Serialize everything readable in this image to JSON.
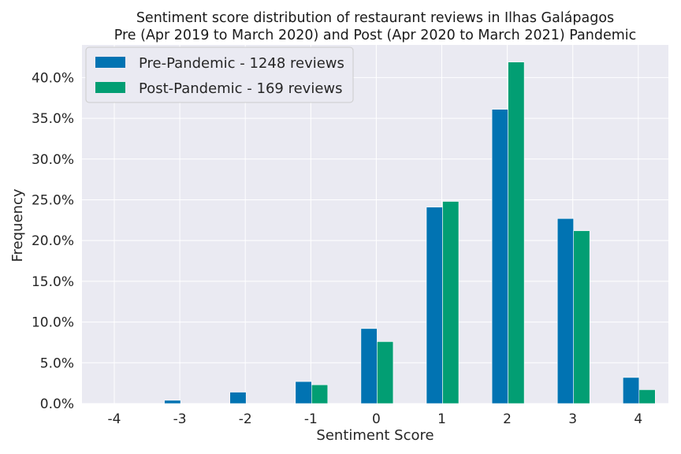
{
  "chart_data": {
    "type": "bar",
    "title_line1": "Sentiment score distribution of restaurant reviews in Ilhas Galápagos",
    "title_line2": "Pre (Apr 2019 to March 2020) and Post (Apr 2020 to March 2021) Pandemic",
    "xlabel": "Sentiment Score",
    "ylabel": "Frequency",
    "categories": [
      "-4",
      "-3",
      "-2",
      "-1",
      "0",
      "1",
      "2",
      "3",
      "4"
    ],
    "ylim": [
      0,
      44
    ],
    "yticks": [
      0,
      5,
      10,
      15,
      20,
      25,
      30,
      35,
      40
    ],
    "ytick_labels": [
      "0.0%",
      "5.0%",
      "10.0%",
      "15.0%",
      "20.0%",
      "25.0%",
      "30.0%",
      "35.0%",
      "40.0%"
    ],
    "grid": true,
    "legend_position": "top-left",
    "series": [
      {
        "name": "Pre-Pandemic - 1248 reviews",
        "color": "#0173b2",
        "values": [
          0,
          0.4,
          1.4,
          2.7,
          9.2,
          24.1,
          36.1,
          22.7,
          3.2
        ]
      },
      {
        "name": "Post-Pandemic - 169 reviews",
        "color": "#029e73",
        "values": [
          0,
          0,
          0,
          2.3,
          7.6,
          24.8,
          41.9,
          21.2,
          1.7
        ]
      }
    ]
  }
}
